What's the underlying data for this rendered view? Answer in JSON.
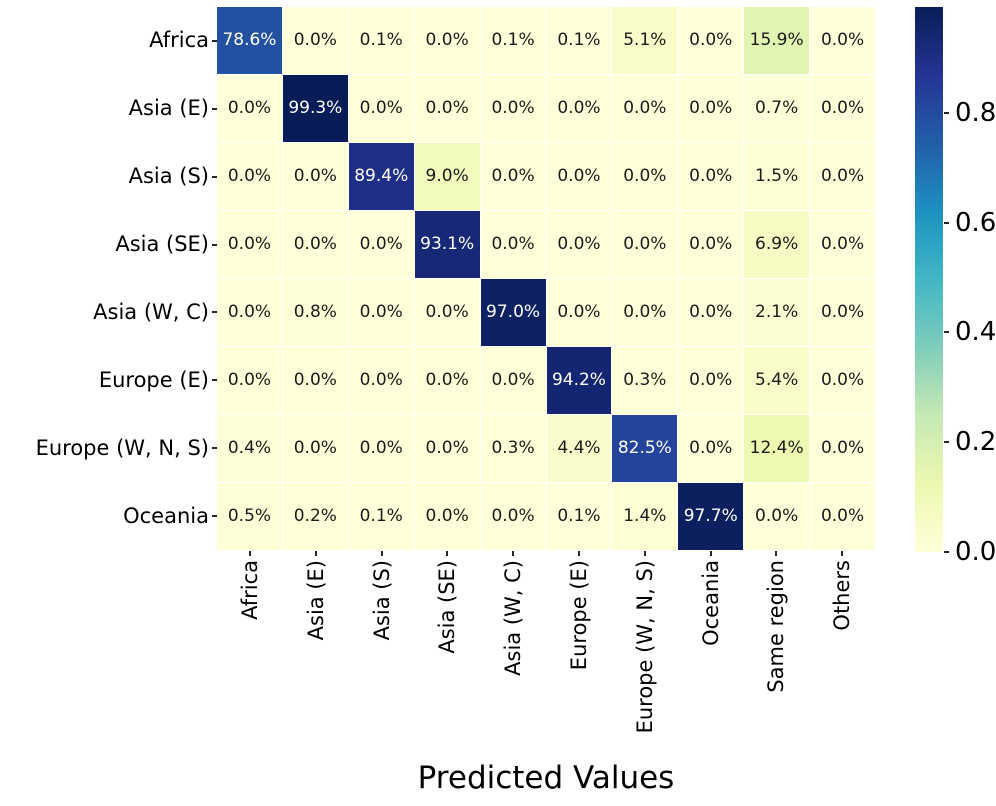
{
  "chart_data": {
    "type": "heatmap",
    "title": "",
    "xlabel": "Predicted Values",
    "ylabel": "",
    "rows": [
      "Africa",
      "Asia (E)",
      "Asia (S)",
      "Asia (SE)",
      "Asia (W, C)",
      "Europe (E)",
      "Europe (W, N, S)",
      "Oceania"
    ],
    "columns": [
      "Africa",
      "Asia (E)",
      "Asia (S)",
      "Asia (SE)",
      "Asia (W, C)",
      "Europe (E)",
      "Europe (W, N, S)",
      "Oceania",
      "Same region",
      "Others"
    ],
    "values_percent": [
      [
        78.6,
        0.0,
        0.1,
        0.0,
        0.1,
        0.1,
        5.1,
        0.0,
        15.9,
        0.0
      ],
      [
        0.0,
        99.3,
        0.0,
        0.0,
        0.0,
        0.0,
        0.0,
        0.0,
        0.7,
        0.0
      ],
      [
        0.0,
        0.0,
        89.4,
        9.0,
        0.0,
        0.0,
        0.0,
        0.0,
        1.5,
        0.0
      ],
      [
        0.0,
        0.0,
        0.0,
        93.1,
        0.0,
        0.0,
        0.0,
        0.0,
        6.9,
        0.0
      ],
      [
        0.0,
        0.8,
        0.0,
        0.0,
        97.0,
        0.0,
        0.0,
        0.0,
        2.1,
        0.0
      ],
      [
        0.0,
        0.0,
        0.0,
        0.0,
        0.0,
        94.2,
        0.3,
        0.0,
        5.4,
        0.0
      ],
      [
        0.4,
        0.0,
        0.0,
        0.0,
        0.3,
        4.4,
        82.5,
        0.0,
        12.4,
        0.0
      ],
      [
        0.5,
        0.2,
        0.1,
        0.0,
        0.0,
        0.1,
        1.4,
        97.7,
        0.0,
        0.0
      ]
    ],
    "cell_label_suffix": "%",
    "grid_on": true,
    "legend_position": "right-colorbar",
    "colorbar": {
      "vmin": 0,
      "vmax": 0.993,
      "tick_values": [
        0.0,
        0.2,
        0.4,
        0.6,
        0.8
      ],
      "tick_labels": [
        "0.0",
        "0.2",
        "0.4",
        "0.6",
        "0.8"
      ]
    },
    "colormap": {
      "name": "YlGnBu",
      "stops": [
        {
          "pos": 0.0,
          "rgb": [
            255,
            255,
            217
          ]
        },
        {
          "pos": 0.125,
          "rgb": [
            237,
            248,
            177
          ]
        },
        {
          "pos": 0.25,
          "rgb": [
            199,
            233,
            180
          ]
        },
        {
          "pos": 0.375,
          "rgb": [
            127,
            205,
            187
          ]
        },
        {
          "pos": 0.5,
          "rgb": [
            65,
            182,
            196
          ]
        },
        {
          "pos": 0.625,
          "rgb": [
            29,
            145,
            192
          ]
        },
        {
          "pos": 0.75,
          "rgb": [
            34,
            94,
            168
          ]
        },
        {
          "pos": 0.875,
          "rgb": [
            37,
            52,
            148
          ]
        },
        {
          "pos": 1.0,
          "rgb": [
            8,
            29,
            88
          ]
        }
      ]
    },
    "text_colors": {
      "dark_cell_text": "#ffffff",
      "light_cell_text": "#1a1a1a"
    }
  }
}
